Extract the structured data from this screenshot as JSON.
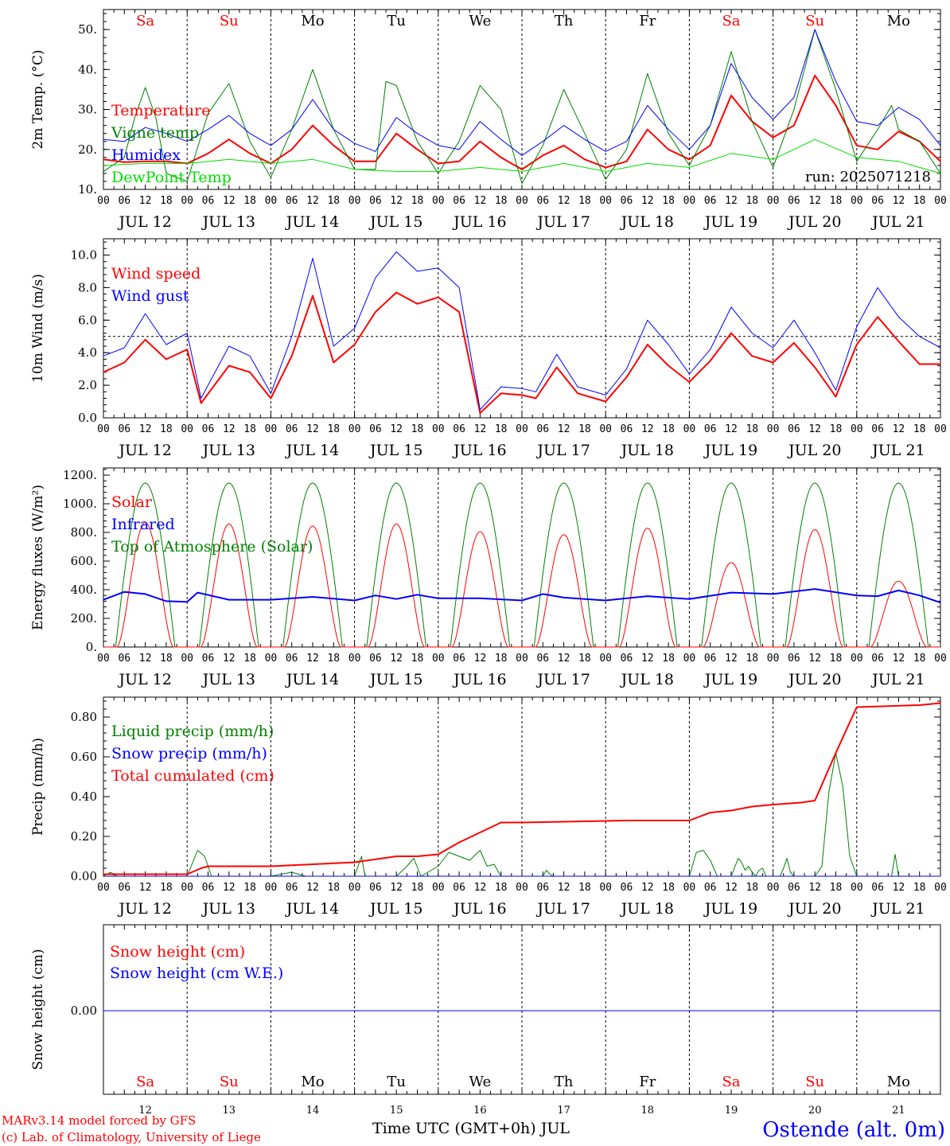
{
  "colors": {
    "red": "#ff0000",
    "green": "#008000",
    "blue": "#0000ff",
    "lightgreen": "#00dd00",
    "black": "#000000"
  },
  "days_top": [
    {
      "label": "Sa",
      "color": "#ff0000"
    },
    {
      "label": "Su",
      "color": "#ff0000"
    },
    {
      "label": "Mo",
      "color": "#000000"
    },
    {
      "label": "Tu",
      "color": "#000000"
    },
    {
      "label": "We",
      "color": "#000000"
    },
    {
      "label": "Th",
      "color": "#000000"
    },
    {
      "label": "Fr",
      "color": "#000000"
    },
    {
      "label": "Sa",
      "color": "#ff0000"
    },
    {
      "label": "Su",
      "color": "#ff0000"
    },
    {
      "label": "Mo",
      "color": "#000000"
    }
  ],
  "dates": [
    "JUL 12",
    "JUL 13",
    "JUL 14",
    "JUL 15",
    "JUL 16",
    "JUL 17",
    "JUL 18",
    "JUL 19",
    "JUL 20",
    "JUL 21"
  ],
  "hour_ticks": [
    "00",
    "06",
    "12",
    "18"
  ],
  "end_tick": "00",
  "bottom_day_numbers": [
    "12",
    "13",
    "14",
    "15",
    "16",
    "17",
    "18",
    "19",
    "20",
    "21"
  ],
  "footer": {
    "model_line": "MARv3.14 model forced by GFS",
    "lab_line": "(c) Lab. of Climatology, University of Liege",
    "xlabel": "Time UTC (GMT+0h) JUL",
    "station": "Ostende (alt. 0m)"
  },
  "chart_data": [
    {
      "id": "temp",
      "type": "line",
      "ylabel": "2m Temp. (°C)",
      "ylim": [
        10,
        55
      ],
      "yticks": [
        10,
        20,
        30,
        40,
        50
      ],
      "ytick_labels": [
        "10.",
        "20.",
        "30.",
        "40.",
        "50."
      ],
      "annotation": "run: 2025071218",
      "x_unit": "hours since JUL 12 00 UTC",
      "series": [
        {
          "name": "Temperature",
          "color": "#ff0000",
          "width": 2,
          "x": [
            0,
            6,
            12,
            18,
            24,
            30,
            36,
            42,
            48,
            54,
            60,
            66,
            72,
            78,
            84,
            90,
            96,
            102,
            108,
            114,
            120,
            126,
            132,
            138,
            144,
            150,
            156,
            162,
            168,
            174,
            180,
            186,
            192,
            198,
            204,
            210,
            216,
            222,
            228,
            234,
            240
          ],
          "y": [
            17.5,
            16.8,
            17,
            17,
            16.5,
            19,
            22.5,
            19,
            16.5,
            20,
            26,
            21,
            17,
            17,
            24,
            20,
            16.5,
            17,
            22,
            18,
            15,
            18.5,
            21,
            17.5,
            15.5,
            17,
            25,
            20,
            17.5,
            21,
            33.5,
            27,
            23,
            26,
            38.5,
            31,
            21,
            20,
            24.5,
            22,
            17
          ]
        },
        {
          "name": "Vigne temp",
          "color": "#008000",
          "width": 1,
          "x": [
            0,
            6,
            9,
            12,
            15,
            18,
            24,
            30,
            36,
            42,
            48,
            54,
            60,
            66,
            72,
            78,
            81,
            84,
            90,
            96,
            102,
            108,
            114,
            120,
            126,
            132,
            138,
            144,
            150,
            156,
            162,
            168,
            174,
            180,
            186,
            192,
            198,
            204,
            210,
            216,
            222,
            226,
            228,
            234,
            240
          ],
          "y": [
            14.5,
            18,
            28,
            35.5,
            28,
            14,
            12,
            29,
            36.5,
            22,
            13,
            25,
            40,
            25,
            15,
            15,
            37,
            36,
            22,
            14,
            22,
            36,
            30,
            11.5,
            21,
            35,
            24,
            12.5,
            20,
            39,
            24,
            16,
            26,
            44.5,
            27,
            15.5,
            30,
            50,
            35,
            17,
            25,
            31,
            25,
            22,
            14
          ]
        },
        {
          "name": "Humidex",
          "color": "#0000ff",
          "width": 1,
          "x": [
            0,
            6,
            12,
            18,
            24,
            30,
            36,
            42,
            48,
            54,
            60,
            66,
            72,
            78,
            84,
            90,
            96,
            102,
            108,
            114,
            120,
            126,
            132,
            138,
            144,
            150,
            156,
            162,
            168,
            174,
            180,
            186,
            192,
            198,
            204,
            210,
            216,
            222,
            228,
            234,
            240
          ],
          "y": [
            22.5,
            22,
            25.5,
            24,
            22,
            25,
            28.5,
            24,
            21,
            25,
            32.5,
            25,
            21.5,
            19.5,
            28,
            24,
            21,
            20,
            27,
            22.5,
            18.5,
            22,
            26,
            22.5,
            19.5,
            22,
            31,
            25,
            20,
            26,
            41.5,
            33,
            27.5,
            33,
            50,
            37,
            27,
            26,
            30.5,
            27.5,
            21
          ]
        },
        {
          "name": "DewPoint Temp",
          "color": "#00dd00",
          "width": 1,
          "x": [
            0,
            12,
            24,
            36,
            48,
            60,
            72,
            84,
            96,
            108,
            120,
            132,
            144,
            156,
            168,
            180,
            192,
            204,
            216,
            228,
            240
          ],
          "y": [
            16,
            16.5,
            16.5,
            17.5,
            16.5,
            17.5,
            15,
            14.5,
            14.5,
            15.5,
            14.5,
            16.5,
            14.5,
            16.5,
            15.5,
            19,
            17.5,
            22.5,
            18,
            17,
            14
          ]
        }
      ]
    },
    {
      "id": "wind",
      "type": "line",
      "ylabel": "10m Wind (m/s)",
      "ylim": [
        0,
        11
      ],
      "yticks": [
        0,
        2,
        4,
        6,
        8,
        10
      ],
      "ytick_labels": [
        "0.0",
        "2.0",
        "4.0",
        "6.0",
        "8.0",
        "10.0"
      ],
      "ref_line": 5.0,
      "x_unit": "hours since JUL 12 00 UTC",
      "series": [
        {
          "name": "Wind speed",
          "color": "#ff0000",
          "width": 2,
          "x": [
            0,
            6,
            12,
            18,
            24,
            28,
            36,
            42,
            48,
            54,
            60,
            66,
            72,
            78,
            84,
            90,
            96,
            102,
            108,
            114,
            120,
            124,
            130,
            136,
            144,
            150,
            156,
            162,
            168,
            174,
            180,
            186,
            192,
            198,
            204,
            210,
            216,
            222,
            228,
            234,
            240
          ],
          "y": [
            2.8,
            3.4,
            4.8,
            3.6,
            4.2,
            0.9,
            3.2,
            2.8,
            1.2,
            3.8,
            7.5,
            3.4,
            4.5,
            6.5,
            7.7,
            7.0,
            7.4,
            6.5,
            0.3,
            1.5,
            1.4,
            1.2,
            3.1,
            1.5,
            1.0,
            2.5,
            4.5,
            3.2,
            2.2,
            3.5,
            5.2,
            3.8,
            3.4,
            4.6,
            3.1,
            1.3,
            4.5,
            6.2,
            4.7,
            3.3,
            3.3
          ]
        },
        {
          "name": "Wind gust",
          "color": "#0000ff",
          "width": 1,
          "x": [
            0,
            6,
            12,
            18,
            24,
            28,
            36,
            42,
            48,
            54,
            60,
            66,
            72,
            78,
            84,
            90,
            96,
            102,
            108,
            114,
            120,
            124,
            130,
            136,
            144,
            150,
            156,
            162,
            168,
            174,
            180,
            186,
            192,
            198,
            204,
            210,
            216,
            222,
            228,
            234,
            240
          ],
          "y": [
            3.8,
            4.3,
            6.4,
            4.5,
            5.2,
            1.2,
            4.4,
            3.8,
            1.5,
            5.0,
            9.8,
            4.4,
            5.5,
            8.6,
            10.2,
            9.0,
            9.2,
            8.0,
            0.5,
            1.9,
            1.8,
            1.6,
            3.9,
            1.9,
            1.4,
            3.0,
            6.0,
            4.5,
            2.7,
            4.2,
            6.8,
            5.2,
            4.3,
            6.0,
            4.0,
            1.7,
            5.6,
            8.0,
            6.2,
            5.0,
            4.3
          ]
        }
      ]
    },
    {
      "id": "energy",
      "type": "line",
      "ylabel": "Energy fluxes (W/m²)",
      "ylim": [
        0,
        1250
      ],
      "yticks": [
        0,
        200,
        400,
        600,
        800,
        1000,
        1200
      ],
      "ytick_labels": [
        "0.",
        "200.",
        "400.",
        "600.",
        "800.",
        "1000.",
        "1200."
      ],
      "x_unit": "hours since JUL 12 00 UTC",
      "solar_peaks": [
        870,
        860,
        845,
        860,
        805,
        785,
        830,
        590,
        820,
        460
      ],
      "toa_peak": 1145,
      "infrared": {
        "x": [
          0,
          6,
          12,
          18,
          24,
          27,
          36,
          48,
          60,
          72,
          78,
          84,
          90,
          96,
          108,
          120,
          126,
          132,
          144,
          156,
          168,
          180,
          192,
          204,
          216,
          222,
          228,
          234,
          240
        ],
        "y": [
          330,
          385,
          370,
          320,
          315,
          380,
          330,
          330,
          350,
          325,
          360,
          335,
          365,
          340,
          340,
          325,
          370,
          345,
          325,
          355,
          335,
          380,
          370,
          405,
          360,
          355,
          395,
          360,
          310
        ]
      },
      "series": [
        {
          "name": "Solar",
          "color": "#ff0000",
          "width": 1
        },
        {
          "name": "Infrared",
          "color": "#0000ff",
          "width": 2
        },
        {
          "name": "Top of Atmosphere (Solar)",
          "color": "#008000",
          "width": 1
        }
      ]
    },
    {
      "id": "precip",
      "type": "line",
      "ylabel": "Precip (mm/h)",
      "ylim": [
        0,
        0.9
      ],
      "yticks": [
        0,
        0.2,
        0.4,
        0.6,
        0.8
      ],
      "ytick_labels": [
        "0.00",
        "0.20",
        "0.40",
        "0.60",
        "0.80"
      ],
      "x_unit": "hours since JUL 12 00 UTC",
      "series": [
        {
          "name": "Liquid precip (mm/h)",
          "color": "#008000",
          "width": 1,
          "x": [
            0,
            2,
            4,
            6,
            24,
            27,
            29,
            31,
            33,
            48,
            54,
            56,
            58,
            72,
            74,
            75,
            76,
            84,
            87,
            89,
            91,
            96,
            99,
            102,
            105,
            108,
            110,
            112,
            114,
            120,
            126,
            127,
            128,
            129,
            130,
            168,
            170,
            172,
            174,
            176,
            180,
            182,
            183,
            184,
            185,
            186,
            187,
            188,
            189,
            190,
            194,
            195,
            196,
            197,
            198,
            204,
            206,
            208,
            210,
            212,
            214,
            216,
            226,
            227,
            228,
            240
          ],
          "y": [
            0,
            0.02,
            0,
            0,
            0,
            0.13,
            0.1,
            0,
            0,
            0,
            0.02,
            0.01,
            0,
            0,
            0.1,
            0,
            0,
            0,
            0.05,
            0.09,
            0,
            0.05,
            0.12,
            0.1,
            0.08,
            0.13,
            0.05,
            0.06,
            0,
            0,
            0,
            0.03,
            0.01,
            0,
            0,
            0,
            0.12,
            0.13,
            0.08,
            0,
            0,
            0.09,
            0.07,
            0.03,
            0.05,
            0.02,
            0,
            0.03,
            0.04,
            0,
            0,
            0.04,
            0.09,
            0.02,
            0,
            0,
            0.05,
            0.42,
            0.62,
            0.45,
            0.1,
            0,
            0,
            0.11,
            0,
            0
          ]
        },
        {
          "name": "Snow precip (mm/h)",
          "color": "#0000ff",
          "width": 1,
          "x": [
            0,
            240
          ],
          "y": [
            0,
            0
          ]
        },
        {
          "name": "Total cumulated (cm)",
          "color": "#ff0000",
          "width": 2,
          "x": [
            0,
            24,
            28,
            30,
            48,
            60,
            72,
            84,
            90,
            96,
            102,
            108,
            114,
            120,
            150,
            168,
            174,
            180,
            186,
            192,
            200,
            204,
            210,
            216,
            234,
            240
          ],
          "y": [
            0.01,
            0.01,
            0.04,
            0.05,
            0.05,
            0.06,
            0.07,
            0.1,
            0.1,
            0.11,
            0.17,
            0.22,
            0.27,
            0.27,
            0.28,
            0.28,
            0.32,
            0.33,
            0.35,
            0.36,
            0.37,
            0.38,
            0.62,
            0.85,
            0.86,
            0.87
          ]
        }
      ]
    },
    {
      "id": "snow",
      "type": "line",
      "ylabel": "Snow height (cm)",
      "yticks": [
        0
      ],
      "ytick_labels": [
        "0.00"
      ],
      "x_unit": "hours since JUL 12 00 UTC",
      "series": [
        {
          "name": "Snow height (cm)",
          "color": "#ff0000",
          "width": 1,
          "x": [
            0,
            240
          ],
          "y": [
            0,
            0
          ]
        },
        {
          "name": "Snow height (cm W.E.)",
          "color": "#0000ff",
          "width": 1,
          "x": [
            0,
            240
          ],
          "y": [
            0,
            0
          ]
        }
      ]
    }
  ]
}
